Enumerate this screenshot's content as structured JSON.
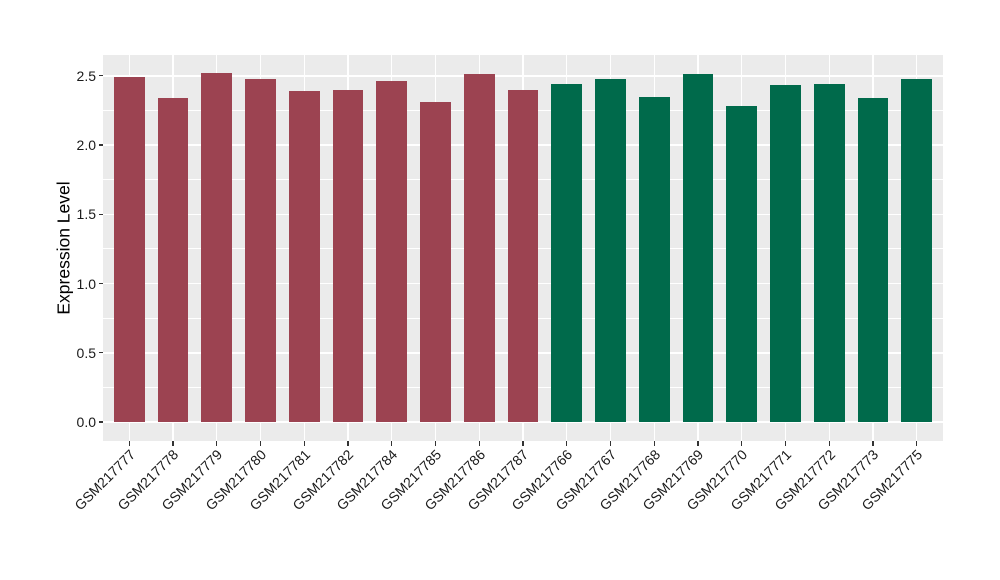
{
  "figure": {
    "background": "#FFFFFF",
    "panel_background": "#EBEBEB",
    "grid_color": "#FFFFFF",
    "tick_mark_color": "#333333",
    "text_color": "#1A1A1A"
  },
  "chart_data": {
    "type": "bar",
    "title": "",
    "xlabel": "",
    "ylabel": "Expression Level",
    "ylim": [
      0,
      2.65
    ],
    "y_major_ticks": [
      "0.0",
      "0.5",
      "1.0",
      "1.5",
      "2.0",
      "2.5"
    ],
    "y_minor_ticks": [
      0.25,
      0.75,
      1.25,
      1.75,
      2.25
    ],
    "grid": "white major+minor horizontal and major vertical lines on gray panel",
    "legend_position": "none",
    "x_tick_rotation": 45,
    "categories": [
      "GSM217777",
      "GSM217778",
      "GSM217779",
      "GSM217780",
      "GSM217781",
      "GSM217782",
      "GSM217784",
      "GSM217785",
      "GSM217786",
      "GSM217787",
      "GSM217766",
      "GSM217767",
      "GSM217768",
      "GSM217769",
      "GSM217770",
      "GSM217771",
      "GSM217772",
      "GSM217773",
      "GSM217775"
    ],
    "values": [
      2.49,
      2.34,
      2.52,
      2.48,
      2.39,
      2.4,
      2.46,
      2.31,
      2.51,
      2.4,
      2.44,
      2.48,
      2.35,
      2.51,
      2.28,
      2.43,
      2.44,
      2.34,
      2.48
    ],
    "groups": [
      "A",
      "A",
      "A",
      "A",
      "A",
      "A",
      "A",
      "A",
      "A",
      "A",
      "B",
      "B",
      "B",
      "B",
      "B",
      "B",
      "B",
      "B",
      "B"
    ],
    "group_colors": {
      "A": "#9C4351",
      "B": "#006A4B"
    }
  }
}
